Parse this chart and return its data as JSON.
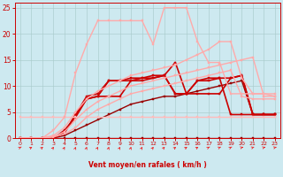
{
  "title": "",
  "xlabel": "Vent moyen/en rafales ( km/h )",
  "background_color": "#cde9f0",
  "grid_color": "#aacccc",
  "x_range": [
    -0.5,
    23.5
  ],
  "y_range": [
    0,
    26
  ],
  "yticks": [
    0,
    5,
    10,
    15,
    20,
    25
  ],
  "xticks": [
    0,
    1,
    2,
    3,
    4,
    5,
    6,
    7,
    8,
    9,
    10,
    11,
    12,
    13,
    14,
    15,
    16,
    17,
    18,
    19,
    20,
    21,
    22,
    23
  ],
  "series": [
    {
      "x": [
        0,
        1,
        2,
        3,
        4,
        5,
        6,
        7,
        8,
        9,
        10,
        11,
        12,
        13,
        14,
        15,
        16,
        17,
        18,
        19,
        20,
        21,
        22,
        23
      ],
      "y": [
        0,
        0,
        0,
        0,
        0,
        0,
        0,
        0,
        0,
        0,
        0,
        0,
        0,
        0,
        0,
        0,
        0,
        0,
        0,
        0,
        0,
        0,
        0,
        0
      ],
      "color": "#990000",
      "lw": 1.0,
      "marker": "s",
      "ms": 2.0
    },
    {
      "x": [
        0,
        1,
        2,
        3,
        4,
        5,
        6,
        7,
        8,
        9,
        10,
        11,
        12,
        13,
        14,
        15,
        16,
        17,
        18,
        19,
        20,
        21,
        22,
        23
      ],
      "y": [
        0,
        0,
        0,
        0,
        0.5,
        1.5,
        2.5,
        3.5,
        4.5,
        5.5,
        6.5,
        7.0,
        7.5,
        8.0,
        8.0,
        8.5,
        9.0,
        9.5,
        10.0,
        10.5,
        11.0,
        4.5,
        4.5,
        4.5
      ],
      "color": "#990000",
      "lw": 1.0,
      "marker": "s",
      "ms": 2.0
    },
    {
      "x": [
        0,
        1,
        2,
        3,
        4,
        5,
        6,
        7,
        8,
        9,
        10,
        11,
        12,
        13,
        14,
        15,
        16,
        17,
        18,
        19,
        20,
        21,
        22,
        23
      ],
      "y": [
        0,
        0,
        0,
        0,
        1.0,
        4.5,
        7.5,
        8.0,
        8.0,
        8.0,
        11.0,
        11.0,
        11.5,
        12.0,
        8.5,
        8.5,
        8.5,
        8.5,
        8.5,
        11.5,
        12.0,
        4.5,
        4.5,
        4.5
      ],
      "color": "#cc0000",
      "lw": 1.2,
      "marker": "s",
      "ms": 2.0
    },
    {
      "x": [
        0,
        1,
        2,
        3,
        4,
        5,
        6,
        7,
        8,
        9,
        10,
        11,
        12,
        13,
        14,
        15,
        16,
        17,
        18,
        19,
        20,
        21,
        22,
        23
      ],
      "y": [
        0,
        0,
        0,
        0,
        1.5,
        4.0,
        7.5,
        8.0,
        11.0,
        11.0,
        11.0,
        11.5,
        11.5,
        12.0,
        14.5,
        8.5,
        11.0,
        11.0,
        11.5,
        4.5,
        4.5,
        4.5,
        4.5,
        4.5
      ],
      "color": "#cc0000",
      "lw": 1.2,
      "marker": "s",
      "ms": 2.0
    },
    {
      "x": [
        0,
        1,
        2,
        3,
        4,
        5,
        6,
        7,
        8,
        9,
        10,
        11,
        12,
        13,
        14,
        15,
        16,
        17,
        18,
        19,
        20,
        21,
        22,
        23
      ],
      "y": [
        0,
        0,
        0,
        0,
        1.0,
        4.5,
        8.0,
        8.5,
        11.0,
        11.0,
        11.5,
        11.5,
        12.0,
        12.0,
        8.5,
        8.5,
        11.0,
        11.5,
        11.5,
        11.5,
        12.0,
        4.5,
        4.5,
        4.5
      ],
      "color": "#cc0000",
      "lw": 1.2,
      "marker": "s",
      "ms": 2.0
    },
    {
      "x": [
        0,
        1,
        2,
        3,
        4,
        5,
        6,
        7,
        8,
        9,
        10,
        11,
        12,
        13,
        14,
        15,
        16,
        17,
        18,
        19,
        20,
        21,
        22,
        23
      ],
      "y": [
        4,
        4,
        4,
        4,
        4,
        4,
        4,
        4,
        4,
        4,
        4,
        4,
        4,
        4,
        4,
        4,
        4,
        4,
        4,
        4,
        4,
        4,
        4,
        4
      ],
      "color": "#ffbbbb",
      "lw": 1.0,
      "marker": "s",
      "ms": 2.0
    },
    {
      "x": [
        0,
        1,
        2,
        3,
        4,
        5,
        6,
        7,
        8,
        9,
        10,
        11,
        12,
        13,
        14,
        15,
        16,
        17,
        18,
        19,
        20,
        21,
        22,
        23
      ],
      "y": [
        0,
        0,
        0,
        1.5,
        4,
        12.5,
        18,
        22.5,
        22.5,
        22.5,
        22.5,
        22.5,
        18,
        25,
        25,
        25,
        18.5,
        14.5,
        14.5,
        8.5,
        8.5,
        8.5,
        8.5,
        8.5
      ],
      "color": "#ffaaaa",
      "lw": 1.0,
      "marker": "s",
      "ms": 2.0
    },
    {
      "x": [
        0,
        1,
        2,
        3,
        4,
        5,
        6,
        7,
        8,
        9,
        10,
        11,
        12,
        13,
        14,
        15,
        16,
        17,
        18,
        19,
        20,
        21,
        22,
        23
      ],
      "y": [
        0,
        0,
        0,
        0.5,
        2.0,
        5.0,
        7.5,
        9.0,
        10.0,
        11.0,
        12.0,
        12.5,
        13.0,
        13.5,
        14.0,
        15.0,
        16.0,
        17.0,
        18.5,
        18.5,
        11.5,
        8.5,
        8.5,
        8.0
      ],
      "color": "#ffaaaa",
      "lw": 1.0,
      "marker": "s",
      "ms": 2.0
    },
    {
      "x": [
        0,
        1,
        2,
        3,
        4,
        5,
        6,
        7,
        8,
        9,
        10,
        11,
        12,
        13,
        14,
        15,
        16,
        17,
        18,
        19,
        20,
        21,
        22,
        23
      ],
      "y": [
        0,
        0,
        0,
        0.3,
        1.2,
        3.5,
        5.5,
        7.0,
        8.0,
        9.0,
        10.0,
        10.5,
        11.0,
        11.5,
        12.0,
        12.5,
        13.0,
        13.5,
        14.0,
        14.5,
        15.0,
        15.5,
        8.0,
        8.0
      ],
      "color": "#ffaaaa",
      "lw": 1.0,
      "marker": "s",
      "ms": 2.0
    },
    {
      "x": [
        0,
        1,
        2,
        3,
        4,
        5,
        6,
        7,
        8,
        9,
        10,
        11,
        12,
        13,
        14,
        15,
        16,
        17,
        18,
        19,
        20,
        21,
        22,
        23
      ],
      "y": [
        0,
        0,
        0,
        0.2,
        0.8,
        2.0,
        4.0,
        5.5,
        6.5,
        7.5,
        8.5,
        9.0,
        9.5,
        10.0,
        10.5,
        11.0,
        11.5,
        12.0,
        12.5,
        13.0,
        8.0,
        7.5,
        7.5,
        7.5
      ],
      "color": "#ffaaaa",
      "lw": 1.0,
      "marker": "s",
      "ms": 2.0
    }
  ],
  "arrow_angles": [
    45,
    50,
    60,
    70,
    75,
    80,
    80,
    75,
    80,
    75,
    80,
    75,
    70,
    65,
    60,
    55,
    50,
    45,
    40,
    45,
    30,
    35,
    30,
    30
  ],
  "arrow_color": "#ee2222"
}
